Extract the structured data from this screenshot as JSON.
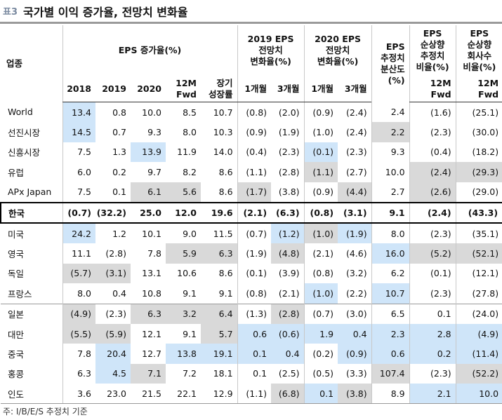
{
  "label": "표3",
  "title": "국가별 이익 증가율, 전망치 변화율",
  "table": {
    "category_header": "업종",
    "groups": [
      {
        "lines": [
          "EPS 증가율(%)"
        ],
        "columns": [
          {
            "lines": [
              "2018"
            ]
          },
          {
            "lines": [
              "2019"
            ]
          },
          {
            "lines": [
              "2020"
            ]
          },
          {
            "lines": [
              "12M",
              "Fwd"
            ]
          },
          {
            "lines": [
              "장기",
              "성장률"
            ]
          }
        ]
      },
      {
        "lines": [
          "2019 EPS",
          "전망치",
          "변화율(%)"
        ],
        "columns": [
          {
            "lines": [
              "1개월"
            ]
          },
          {
            "lines": [
              "3개월"
            ]
          }
        ]
      },
      {
        "lines": [
          "2020 EPS",
          "전망치",
          "변화율(%)"
        ],
        "columns": [
          {
            "lines": [
              "1개월"
            ]
          },
          {
            "lines": [
              "3개월"
            ]
          }
        ]
      },
      {
        "lines": [
          "EPS",
          "추정치",
          "분산도",
          "(%)"
        ]
      },
      {
        "lines": [
          "EPS",
          "순상향",
          "추정치",
          "비율(%)"
        ],
        "columns": [
          {
            "lines": [
              "12M",
              "Fwd"
            ]
          }
        ]
      },
      {
        "lines": [
          "EPS",
          "순상향",
          "회사수",
          "비율(%)"
        ],
        "columns": [
          {
            "lines": [
              "12M",
              "Fwd"
            ]
          }
        ]
      }
    ],
    "sections": [
      {
        "rows": [
          {
            "label": "World",
            "cells": [
              {
                "text": "13.4",
                "fill": "#cfe5f9"
              },
              {
                "text": "0.8"
              },
              {
                "text": "10.0"
              },
              {
                "text": "8.5"
              },
              {
                "text": "10.7"
              },
              {
                "text": "(0.8)"
              },
              {
                "text": "(2.0)"
              },
              {
                "text": "(0.9)"
              },
              {
                "text": "(2.4)"
              },
              {
                "text": "2.4"
              },
              {
                "text": "(1.6)"
              },
              {
                "text": "(25.1)"
              }
            ]
          },
          {
            "label": "선진시장",
            "cells": [
              {
                "text": "14.5",
                "fill": "#cfe5f9"
              },
              {
                "text": "0.7"
              },
              {
                "text": "9.3"
              },
              {
                "text": "8.0"
              },
              {
                "text": "10.3"
              },
              {
                "text": "(0.9)"
              },
              {
                "text": "(1.9)"
              },
              {
                "text": "(1.0)"
              },
              {
                "text": "(2.4)"
              },
              {
                "text": "2.2",
                "fill": "#d9d9d9"
              },
              {
                "text": "(2.3)"
              },
              {
                "text": "(30.0)"
              }
            ]
          },
          {
            "label": "신흥시장",
            "cells": [
              {
                "text": "7.5"
              },
              {
                "text": "1.3"
              },
              {
                "text": "13.9",
                "fill": "#cfe5f9"
              },
              {
                "text": "11.9"
              },
              {
                "text": "14.0"
              },
              {
                "text": "(0.4)"
              },
              {
                "text": "(2.3)"
              },
              {
                "text": "(0.1)",
                "fill": "#cfe5f9"
              },
              {
                "text": "(2.3)"
              },
              {
                "text": "9.3"
              },
              {
                "text": "(0.4)"
              },
              {
                "text": "(18.2)"
              }
            ]
          },
          {
            "label": "유럽",
            "cells": [
              {
                "text": "6.0"
              },
              {
                "text": "0.2"
              },
              {
                "text": "9.7"
              },
              {
                "text": "8.2"
              },
              {
                "text": "8.6"
              },
              {
                "text": "(1.1)"
              },
              {
                "text": "(2.8)"
              },
              {
                "text": "(1.1)",
                "fill": "#d9d9d9"
              },
              {
                "text": "(2.7)"
              },
              {
                "text": "10.0"
              },
              {
                "text": "(2.4)",
                "fill": "#d9d9d9"
              },
              {
                "text": "(29.3)",
                "fill": "#d9d9d9"
              }
            ]
          },
          {
            "label": "APx Japan",
            "cells": [
              {
                "text": "7.5"
              },
              {
                "text": "0.1"
              },
              {
                "text": "6.1",
                "fill": "#d9d9d9"
              },
              {
                "text": "5.6",
                "fill": "#d9d9d9"
              },
              {
                "text": "8.6"
              },
              {
                "text": "(1.7)",
                "fill": "#d9d9d9"
              },
              {
                "text": "(3.8)"
              },
              {
                "text": "(0.9)"
              },
              {
                "text": "(4.4)",
                "fill": "#d9d9d9"
              },
              {
                "text": "2.7"
              },
              {
                "text": "(2.6)",
                "fill": "#d9d9d9"
              },
              {
                "text": "(29.0)"
              }
            ]
          }
        ]
      },
      {
        "emphasis": true,
        "rows": [
          {
            "label": "한국",
            "cells": [
              {
                "text": "(0.7)"
              },
              {
                "text": "(32.2)"
              },
              {
                "text": "25.0"
              },
              {
                "text": "12.0"
              },
              {
                "text": "19.6"
              },
              {
                "text": "(2.1)"
              },
              {
                "text": "(6.3)"
              },
              {
                "text": "(0.8)"
              },
              {
                "text": "(3.1)"
              },
              {
                "text": "9.1"
              },
              {
                "text": "(2.4)"
              },
              {
                "text": "(43.3)"
              }
            ]
          }
        ]
      },
      {
        "rows": [
          {
            "label": "미국",
            "cells": [
              {
                "text": "24.2",
                "fill": "#cfe5f9"
              },
              {
                "text": "1.2"
              },
              {
                "text": "10.1"
              },
              {
                "text": "9.0"
              },
              {
                "text": "11.5"
              },
              {
                "text": "(0.7)"
              },
              {
                "text": "(1.2)",
                "fill": "#cfe5f9"
              },
              {
                "text": "(1.0)",
                "fill": "#d9d9d9"
              },
              {
                "text": "(1.9)",
                "fill": "#cfe5f9"
              },
              {
                "text": "8.0"
              },
              {
                "text": "(2.3)"
              },
              {
                "text": "(35.1)"
              }
            ]
          },
          {
            "label": "영국",
            "cells": [
              {
                "text": "11.1"
              },
              {
                "text": "(2.8)"
              },
              {
                "text": "7.8"
              },
              {
                "text": "5.9",
                "fill": "#d9d9d9"
              },
              {
                "text": "6.3",
                "fill": "#d9d9d9"
              },
              {
                "text": "(1.9)"
              },
              {
                "text": "(4.8)",
                "fill": "#d9d9d9"
              },
              {
                "text": "(2.1)"
              },
              {
                "text": "(4.6)"
              },
              {
                "text": "16.0",
                "fill": "#cfe5f9"
              },
              {
                "text": "(5.2)",
                "fill": "#d9d9d9"
              },
              {
                "text": "(52.1)",
                "fill": "#d9d9d9"
              }
            ]
          },
          {
            "label": "독일",
            "cells": [
              {
                "text": "(5.7)",
                "fill": "#d9d9d9"
              },
              {
                "text": "(3.1)",
                "fill": "#d9d9d9"
              },
              {
                "text": "13.1"
              },
              {
                "text": "10.6"
              },
              {
                "text": "8.6"
              },
              {
                "text": "(0.1)"
              },
              {
                "text": "(3.9)"
              },
              {
                "text": "(0.8)"
              },
              {
                "text": "(3.2)"
              },
              {
                "text": "6.2"
              },
              {
                "text": "(0.1)"
              },
              {
                "text": "(12.1)"
              }
            ]
          },
          {
            "label": "프랑스",
            "cells": [
              {
                "text": "8.0"
              },
              {
                "text": "0.4"
              },
              {
                "text": "10.8"
              },
              {
                "text": "9.1"
              },
              {
                "text": "9.1"
              },
              {
                "text": "(0.8)"
              },
              {
                "text": "(2.1)"
              },
              {
                "text": "(1.0)",
                "fill": "#cfe5f9"
              },
              {
                "text": "(2.2)"
              },
              {
                "text": "10.7",
                "fill": "#cfe5f9"
              },
              {
                "text": "(2.3)"
              },
              {
                "text": "(27.8)"
              }
            ]
          }
        ]
      },
      {
        "rows": [
          {
            "label": "일본",
            "cells": [
              {
                "text": "(4.9)",
                "fill": "#d9d9d9"
              },
              {
                "text": "(2.3)"
              },
              {
                "text": "6.3",
                "fill": "#d9d9d9"
              },
              {
                "text": "3.2",
                "fill": "#d9d9d9"
              },
              {
                "text": "6.4",
                "fill": "#d9d9d9"
              },
              {
                "text": "(1.3)"
              },
              {
                "text": "(2.8)",
                "fill": "#d9d9d9"
              },
              {
                "text": "(0.7)"
              },
              {
                "text": "(3.0)"
              },
              {
                "text": "6.5"
              },
              {
                "text": "0.1"
              },
              {
                "text": "(24.0)"
              }
            ]
          },
          {
            "label": "대만",
            "cells": [
              {
                "text": "(5.5)",
                "fill": "#d9d9d9"
              },
              {
                "text": "(5.9)",
                "fill": "#d9d9d9"
              },
              {
                "text": "12.1"
              },
              {
                "text": "9.1"
              },
              {
                "text": "5.7",
                "fill": "#d9d9d9"
              },
              {
                "text": "0.6",
                "fill": "#cfe5f9"
              },
              {
                "text": "(0.6)",
                "fill": "#cfe5f9"
              },
              {
                "text": "1.9",
                "fill": "#cfe5f9"
              },
              {
                "text": "0.4",
                "fill": "#cfe5f9"
              },
              {
                "text": "2.3",
                "fill": "#cfe5f9"
              },
              {
                "text": "2.8",
                "fill": "#cfe5f9"
              },
              {
                "text": "(4.9)",
                "fill": "#cfe5f9"
              }
            ]
          },
          {
            "label": "중국",
            "cells": [
              {
                "text": "7.8"
              },
              {
                "text": "20.4",
                "fill": "#cfe5f9"
              },
              {
                "text": "12.7"
              },
              {
                "text": "13.8",
                "fill": "#cfe5f9"
              },
              {
                "text": "19.1",
                "fill": "#cfe5f9"
              },
              {
                "text": "0.1",
                "fill": "#cfe5f9"
              },
              {
                "text": "0.4",
                "fill": "#cfe5f9"
              },
              {
                "text": "(0.2)"
              },
              {
                "text": "(0.9)",
                "fill": "#cfe5f9"
              },
              {
                "text": "0.6",
                "fill": "#cfe5f9"
              },
              {
                "text": "0.2",
                "fill": "#cfe5f9"
              },
              {
                "text": "(11.4)",
                "fill": "#cfe5f9"
              }
            ]
          },
          {
            "label": "홍콩",
            "cells": [
              {
                "text": "6.3"
              },
              {
                "text": "4.5",
                "fill": "#cfe5f9"
              },
              {
                "text": "7.1",
                "fill": "#d9d9d9"
              },
              {
                "text": "7.2"
              },
              {
                "text": "18.1"
              },
              {
                "text": "0.1"
              },
              {
                "text": "(2.5)"
              },
              {
                "text": "(0.5)"
              },
              {
                "text": "(3.3)"
              },
              {
                "text": "107.4",
                "fill": "#d9d9d9"
              },
              {
                "text": "(2.3)"
              },
              {
                "text": "(52.2)",
                "fill": "#d9d9d9"
              }
            ]
          },
          {
            "label": "인도",
            "cells": [
              {
                "text": "3.6"
              },
              {
                "text": "23.0"
              },
              {
                "text": "21.5"
              },
              {
                "text": "22.1"
              },
              {
                "text": "12.9"
              },
              {
                "text": "(1.1)"
              },
              {
                "text": "(6.8)",
                "fill": "#d9d9d9"
              },
              {
                "text": "0.1",
                "fill": "#cfe5f9"
              },
              {
                "text": "(3.8)",
                "fill": "#d9d9d9"
              },
              {
                "text": "8.9"
              },
              {
                "text": "2.1",
                "fill": "#cfe5f9"
              },
              {
                "text": "10.0",
                "fill": "#cfe5f9"
              }
            ]
          }
        ]
      }
    ]
  },
  "footnote": "주: I/B/E/S 추정치 기준"
}
